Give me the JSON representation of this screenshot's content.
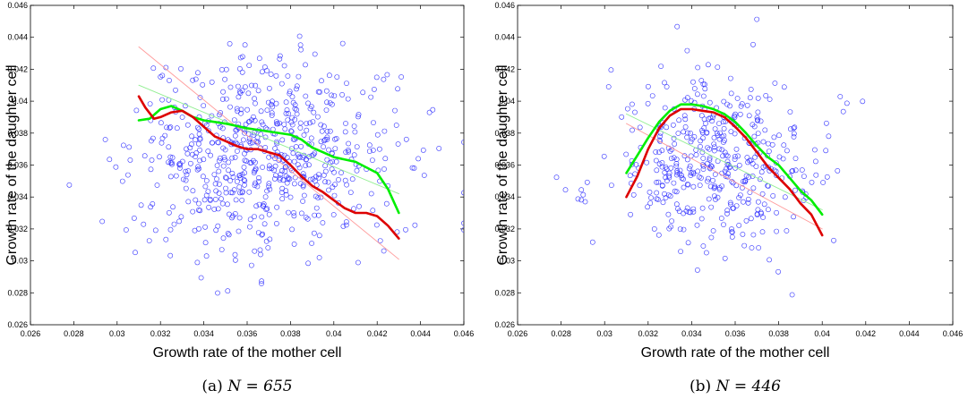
{
  "chart_data": [
    {
      "type": "scatter",
      "caption_prefix": "(a)",
      "caption_expr": "N = 655",
      "xlabel": "Growth rate of the mother cell",
      "ylabel": "Growth rate of the daughter cell",
      "xlim": [
        0.026,
        0.046
      ],
      "ylim": [
        0.026,
        0.046
      ],
      "xticks": [
        "0.026",
        "0.028",
        "0.03",
        "0.032",
        "0.034",
        "0.036",
        "0.038",
        "0.04",
        "0.042",
        "0.044",
        "0.046"
      ],
      "yticks": [
        "0.026",
        "0.028",
        "0.03",
        "0.032",
        "0.034",
        "0.036",
        "0.038",
        "0.04",
        "0.042",
        "0.044",
        "0.046"
      ],
      "grid": false,
      "n_points": 655,
      "scatter_center": [
        0.0368,
        0.0365
      ],
      "scatter_spread": [
        0.003,
        0.003
      ],
      "scatter_x_range": [
        0.026,
        0.046
      ],
      "scatter_seed": 7,
      "marker_color": "#3333ff",
      "series": [
        {
          "color": "#ff9a9a",
          "width": 0.9,
          "x": [
            0.031,
            0.043
          ],
          "y": [
            0.0434,
            0.0301
          ]
        },
        {
          "color": "#90ee90",
          "width": 0.9,
          "x": [
            0.031,
            0.043
          ],
          "y": [
            0.041,
            0.0342
          ]
        },
        {
          "color": "#00ee00",
          "width": 2.6,
          "x": [
            0.031,
            0.0315,
            0.032,
            0.0325,
            0.033,
            0.0335,
            0.034,
            0.0345,
            0.035,
            0.036,
            0.037,
            0.038,
            0.0385,
            0.039,
            0.0395,
            0.04,
            0.041,
            0.042,
            0.0425,
            0.043
          ],
          "y": [
            0.0388,
            0.0389,
            0.0395,
            0.0397,
            0.0394,
            0.039,
            0.0388,
            0.0387,
            0.0386,
            0.0383,
            0.0381,
            0.0379,
            0.0376,
            0.0371,
            0.0368,
            0.0365,
            0.0362,
            0.0355,
            0.0345,
            0.033
          ]
        },
        {
          "color": "#dd0000",
          "width": 2.6,
          "x": [
            0.031,
            0.0313,
            0.0317,
            0.032,
            0.0325,
            0.033,
            0.0335,
            0.034,
            0.0345,
            0.035,
            0.0355,
            0.036,
            0.0365,
            0.037,
            0.0375,
            0.038,
            0.0385,
            0.039,
            0.0395,
            0.04,
            0.0405,
            0.041,
            0.0415,
            0.042,
            0.0425,
            0.043
          ],
          "y": [
            0.0403,
            0.0396,
            0.0389,
            0.039,
            0.0393,
            0.0394,
            0.039,
            0.0384,
            0.0378,
            0.0375,
            0.0372,
            0.037,
            0.037,
            0.0368,
            0.0366,
            0.036,
            0.0353,
            0.0347,
            0.0343,
            0.0338,
            0.0333,
            0.033,
            0.033,
            0.0328,
            0.0322,
            0.0314
          ]
        }
      ]
    },
    {
      "type": "scatter",
      "caption_prefix": "(b)",
      "caption_expr": "N = 446",
      "xlabel": "Growth rate of the mother cell",
      "ylabel": "Growth rate of the daughter cell",
      "xlim": [
        0.026,
        0.046
      ],
      "ylim": [
        0.026,
        0.046
      ],
      "xticks": [
        "0.026",
        "0.028",
        "0.03",
        "0.032",
        "0.034",
        "0.036",
        "0.038",
        "0.04",
        "0.042",
        "0.044",
        "0.046"
      ],
      "yticks": [
        "0.026",
        "0.028",
        "0.03",
        "0.032",
        "0.034",
        "0.036",
        "0.038",
        "0.04",
        "0.042",
        "0.044",
        "0.046"
      ],
      "grid": false,
      "n_points": 446,
      "scatter_center": [
        0.0352,
        0.0362
      ],
      "scatter_spread": [
        0.0024,
        0.0027
      ],
      "scatter_x_range": [
        0.026,
        0.042
      ],
      "scatter_seed": 21,
      "marker_color": "#3333ff",
      "series": [
        {
          "color": "#ff9a9a",
          "width": 0.9,
          "x": [
            0.031,
            0.04
          ],
          "y": [
            0.0386,
            0.032
          ]
        },
        {
          "color": "#90ee90",
          "width": 0.9,
          "x": [
            0.031,
            0.04
          ],
          "y": [
            0.0392,
            0.0332
          ]
        },
        {
          "color": "#00ee00",
          "width": 2.6,
          "x": [
            0.031,
            0.0315,
            0.032,
            0.0325,
            0.033,
            0.0335,
            0.034,
            0.0345,
            0.035,
            0.0355,
            0.036,
            0.0365,
            0.037,
            0.0375,
            0.038,
            0.0385,
            0.039,
            0.0395,
            0.04
          ],
          "y": [
            0.0355,
            0.0366,
            0.0377,
            0.0387,
            0.0394,
            0.0398,
            0.0398,
            0.0397,
            0.0395,
            0.0392,
            0.0387,
            0.038,
            0.0372,
            0.0365,
            0.036,
            0.0352,
            0.0344,
            0.0338,
            0.0329
          ]
        },
        {
          "color": "#dd0000",
          "width": 2.6,
          "x": [
            0.031,
            0.0315,
            0.032,
            0.0325,
            0.033,
            0.0335,
            0.034,
            0.0345,
            0.035,
            0.0355,
            0.036,
            0.0365,
            0.037,
            0.0375,
            0.038,
            0.0385,
            0.039,
            0.0395,
            0.04
          ],
          "y": [
            0.034,
            0.0353,
            0.037,
            0.0383,
            0.0391,
            0.0395,
            0.0395,
            0.0394,
            0.0393,
            0.039,
            0.0384,
            0.0377,
            0.0368,
            0.0359,
            0.0352,
            0.0345,
            0.0336,
            0.0329,
            0.0316
          ]
        }
      ]
    }
  ]
}
